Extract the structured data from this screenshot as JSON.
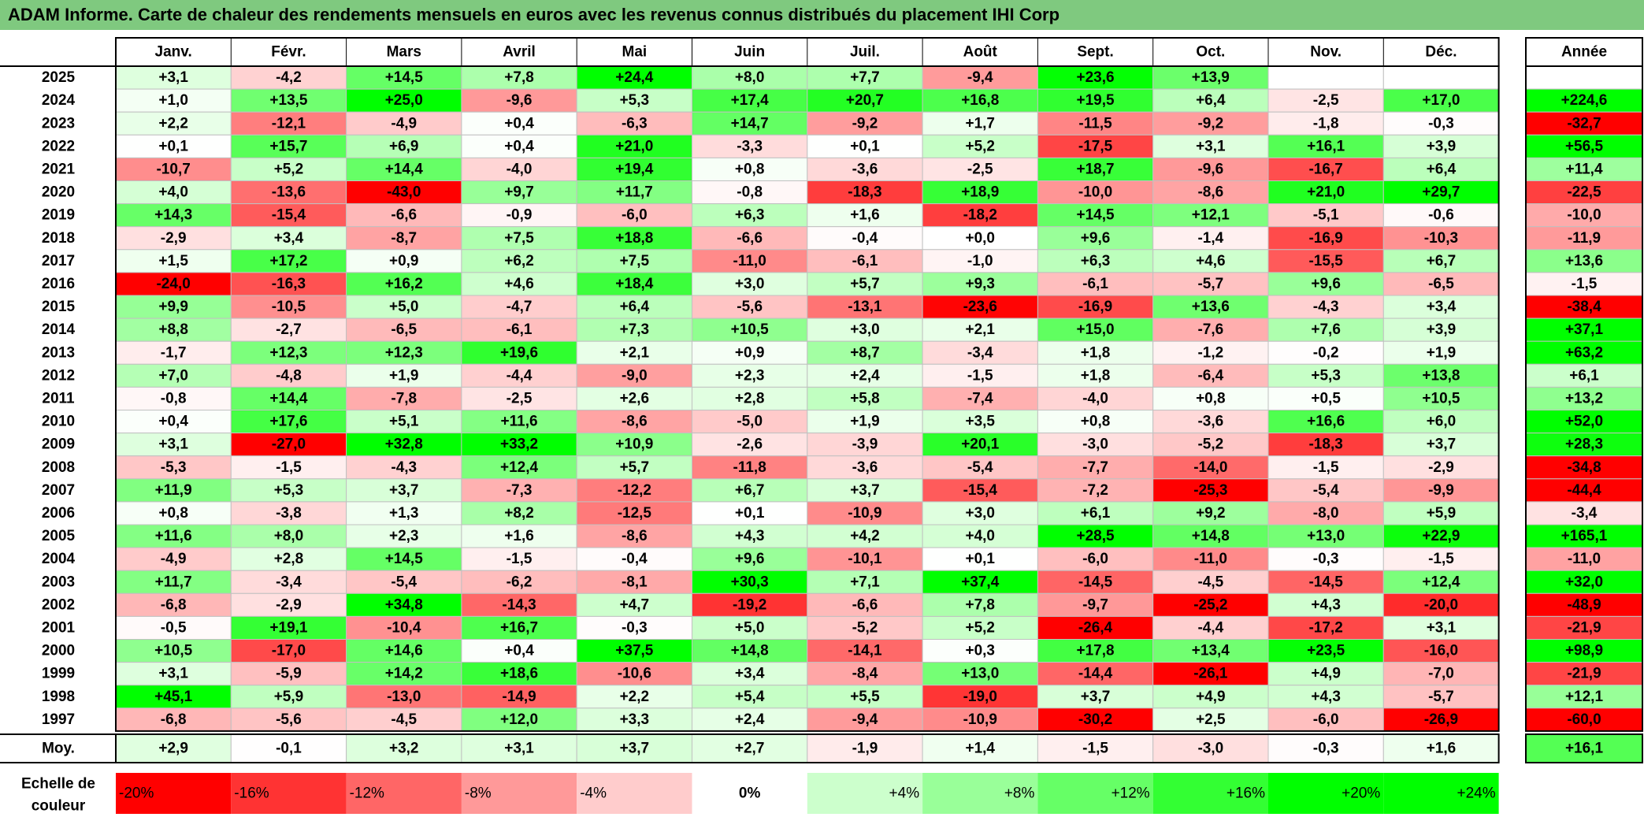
{
  "title": "ADAM Informe. Carte de chaleur des rendements mensuels en euros avec les revenus connus distribués du placement IHI Corp",
  "chart_data": {
    "type": "heatmap",
    "months": [
      "Janv.",
      "Févr.",
      "Mars",
      "Avril",
      "Mai",
      "Juin",
      "Juil.",
      "Août",
      "Sept.",
      "Oct.",
      "Nov.",
      "Déc."
    ],
    "year_header": "Année",
    "rows": [
      {
        "year": "2025",
        "values": [
          "+3,1",
          "-4,2",
          "+14,5",
          "+7,8",
          "+24,4",
          "+8,0",
          "+7,7",
          "-9,4",
          "+23,6",
          "+13,9",
          "",
          ""
        ],
        "annual": ""
      },
      {
        "year": "2024",
        "values": [
          "+1,0",
          "+13,5",
          "+25,0",
          "-9,6",
          "+5,3",
          "+17,4",
          "+20,7",
          "+16,8",
          "+19,5",
          "+6,4",
          "-2,5",
          "+17,0"
        ],
        "annual": "+224,6"
      },
      {
        "year": "2023",
        "values": [
          "+2,2",
          "-12,1",
          "-4,9",
          "+0,4",
          "-6,3",
          "+14,7",
          "-9,2",
          "+1,7",
          "-11,5",
          "-9,2",
          "-1,8",
          "-0,3"
        ],
        "annual": "-32,7"
      },
      {
        "year": "2022",
        "values": [
          "+0,1",
          "+15,7",
          "+6,9",
          "+0,4",
          "+21,0",
          "-3,3",
          "+0,1",
          "+5,2",
          "-17,5",
          "+3,1",
          "+16,1",
          "+3,9"
        ],
        "annual": "+56,5"
      },
      {
        "year": "2021",
        "values": [
          "-10,7",
          "+5,2",
          "+14,4",
          "-4,0",
          "+19,4",
          "+0,8",
          "-3,6",
          "-2,5",
          "+18,7",
          "-9,6",
          "-16,7",
          "+6,4"
        ],
        "annual": "+11,4"
      },
      {
        "year": "2020",
        "values": [
          "+4,0",
          "-13,6",
          "-43,0",
          "+9,7",
          "+11,7",
          "-0,8",
          "-18,3",
          "+18,9",
          "-10,0",
          "-8,6",
          "+21,0",
          "+29,7"
        ],
        "annual": "-22,5"
      },
      {
        "year": "2019",
        "values": [
          "+14,3",
          "-15,4",
          "-6,6",
          "-0,9",
          "-6,0",
          "+6,3",
          "+1,6",
          "-18,2",
          "+14,5",
          "+12,1",
          "-5,1",
          "-0,6"
        ],
        "annual": "-10,0"
      },
      {
        "year": "2018",
        "values": [
          "-2,9",
          "+3,4",
          "-8,7",
          "+7,5",
          "+18,8",
          "-6,6",
          "-0,4",
          "+0,0",
          "+9,6",
          "-1,4",
          "-16,9",
          "-10,3"
        ],
        "annual": "-11,9"
      },
      {
        "year": "2017",
        "values": [
          "+1,5",
          "+17,2",
          "+0,9",
          "+6,2",
          "+7,5",
          "-11,0",
          "-6,1",
          "-1,0",
          "+6,3",
          "+4,6",
          "-15,5",
          "+6,7"
        ],
        "annual": "+13,6"
      },
      {
        "year": "2016",
        "values": [
          "-24,0",
          "-16,3",
          "+16,2",
          "+4,6",
          "+18,4",
          "+3,0",
          "+5,7",
          "+9,3",
          "-6,1",
          "-5,7",
          "+9,6",
          "-6,5"
        ],
        "annual": "-1,5"
      },
      {
        "year": "2015",
        "values": [
          "+9,9",
          "-10,5",
          "+5,0",
          "-4,7",
          "+6,4",
          "-5,6",
          "-13,1",
          "-23,6",
          "-16,9",
          "+13,6",
          "-4,3",
          "+3,4"
        ],
        "annual": "-38,4"
      },
      {
        "year": "2014",
        "values": [
          "+8,8",
          "-2,7",
          "-6,5",
          "-6,1",
          "+7,3",
          "+10,5",
          "+3,0",
          "+2,1",
          "+15,0",
          "-7,6",
          "+7,6",
          "+3,9"
        ],
        "annual": "+37,1"
      },
      {
        "year": "2013",
        "values": [
          "-1,7",
          "+12,3",
          "+12,3",
          "+19,6",
          "+2,1",
          "+0,9",
          "+8,7",
          "-3,4",
          "+1,8",
          "-1,2",
          "-0,2",
          "+1,9"
        ],
        "annual": "+63,2"
      },
      {
        "year": "2012",
        "values": [
          "+7,0",
          "-4,8",
          "+1,9",
          "-4,4",
          "-9,0",
          "+2,3",
          "+2,4",
          "-1,5",
          "+1,8",
          "-6,4",
          "+5,3",
          "+13,8"
        ],
        "annual": "+6,1"
      },
      {
        "year": "2011",
        "values": [
          "-0,8",
          "+14,4",
          "-7,8",
          "-2,5",
          "+2,6",
          "+2,8",
          "+5,8",
          "-7,4",
          "-4,0",
          "+0,8",
          "+0,5",
          "+10,5"
        ],
        "annual": "+13,2"
      },
      {
        "year": "2010",
        "values": [
          "+0,4",
          "+17,6",
          "+5,1",
          "+11,6",
          "-8,6",
          "-5,0",
          "+1,9",
          "+3,5",
          "+0,8",
          "-3,6",
          "+16,6",
          "+6,0"
        ],
        "annual": "+52,0"
      },
      {
        "year": "2009",
        "values": [
          "+3,1",
          "-27,0",
          "+32,8",
          "+33,2",
          "+10,9",
          "-2,6",
          "-3,9",
          "+20,1",
          "-3,0",
          "-5,2",
          "-18,3",
          "+3,7"
        ],
        "annual": "+28,3"
      },
      {
        "year": "2008",
        "values": [
          "-5,3",
          "-1,5",
          "-4,3",
          "+12,4",
          "+5,7",
          "-11,8",
          "-3,6",
          "-5,4",
          "-7,7",
          "-14,0",
          "-1,5",
          "-2,9"
        ],
        "annual": "-34,8"
      },
      {
        "year": "2007",
        "values": [
          "+11,9",
          "+5,3",
          "+3,7",
          "-7,3",
          "-12,2",
          "+6,7",
          "+3,7",
          "-15,4",
          "-7,2",
          "-25,3",
          "-5,4",
          "-9,9"
        ],
        "annual": "-44,4"
      },
      {
        "year": "2006",
        "values": [
          "+0,8",
          "-3,8",
          "+1,3",
          "+8,2",
          "-12,5",
          "+0,1",
          "-10,9",
          "+3,0",
          "+6,1",
          "+9,2",
          "-8,0",
          "+5,9"
        ],
        "annual": "-3,4"
      },
      {
        "year": "2005",
        "values": [
          "+11,6",
          "+8,0",
          "+2,3",
          "+1,6",
          "-8,6",
          "+4,3",
          "+4,2",
          "+4,0",
          "+28,5",
          "+14,8",
          "+13,0",
          "+22,9"
        ],
        "annual": "+165,1"
      },
      {
        "year": "2004",
        "values": [
          "-4,9",
          "+2,8",
          "+14,5",
          "-1,5",
          "-0,4",
          "+9,6",
          "-10,1",
          "+0,1",
          "-6,0",
          "-11,0",
          "-0,3",
          "-1,5"
        ],
        "annual": "-11,0"
      },
      {
        "year": "2003",
        "values": [
          "+11,7",
          "-3,4",
          "-5,4",
          "-6,2",
          "-8,1",
          "+30,3",
          "+7,1",
          "+37,4",
          "-14,5",
          "-4,5",
          "-14,5",
          "+12,4"
        ],
        "annual": "+32,0"
      },
      {
        "year": "2002",
        "values": [
          "-6,8",
          "-2,9",
          "+34,8",
          "-14,3",
          "+4,7",
          "-19,2",
          "-6,6",
          "+7,8",
          "-9,7",
          "-25,2",
          "+4,3",
          "-20,0"
        ],
        "annual": "-48,9"
      },
      {
        "year": "2001",
        "values": [
          "-0,5",
          "+19,1",
          "-10,4",
          "+16,7",
          "-0,3",
          "+5,0",
          "-5,2",
          "+5,2",
          "-26,4",
          "-4,4",
          "-17,2",
          "+3,1"
        ],
        "annual": "-21,9"
      },
      {
        "year": "2000",
        "values": [
          "+10,5",
          "-17,0",
          "+14,6",
          "+0,4",
          "+37,5",
          "+14,8",
          "-14,1",
          "+0,3",
          "+17,8",
          "+13,4",
          "+23,5",
          "-16,0"
        ],
        "annual": "+98,9"
      },
      {
        "year": "1999",
        "values": [
          "+3,1",
          "-5,9",
          "+14,2",
          "+18,6",
          "-10,6",
          "+3,4",
          "-8,4",
          "+13,0",
          "-14,4",
          "-26,1",
          "+4,9",
          "-7,0"
        ],
        "annual": "-21,9"
      },
      {
        "year": "1998",
        "values": [
          "+45,1",
          "+5,9",
          "-13,0",
          "-14,9",
          "+2,2",
          "+5,4",
          "+5,5",
          "-19,0",
          "+3,7",
          "+4,9",
          "+4,3",
          "-5,7"
        ],
        "annual": "+12,1"
      },
      {
        "year": "1997",
        "values": [
          "-6,8",
          "-5,6",
          "-4,5",
          "+12,0",
          "+3,3",
          "+2,4",
          "-9,4",
          "-10,9",
          "-30,2",
          "+2,5",
          "-6,0",
          "-26,9"
        ],
        "annual": "-60,0"
      }
    ],
    "average": {
      "label": "Moy.",
      "values": [
        "+2,9",
        "-0,1",
        "+3,2",
        "+3,1",
        "+3,7",
        "+2,7",
        "-1,9",
        "+1,4",
        "-1,5",
        "-3,0",
        "-0,3",
        "+1,6"
      ],
      "annual": "+16,1"
    },
    "color_scale": {
      "label_line1": "Echelle de",
      "label_line2": "couleur",
      "stops": [
        "-20%",
        "-16%",
        "-12%",
        "-8%",
        "-4%",
        "0%",
        "+4%",
        "+8%",
        "+12%",
        "+16%",
        "+20%",
        "+24%"
      ]
    },
    "colors": {
      "negative": "#ff0000",
      "neutral": "#ffffff",
      "positive": "#00ff00",
      "title_bar": "#7fc97f"
    }
  }
}
